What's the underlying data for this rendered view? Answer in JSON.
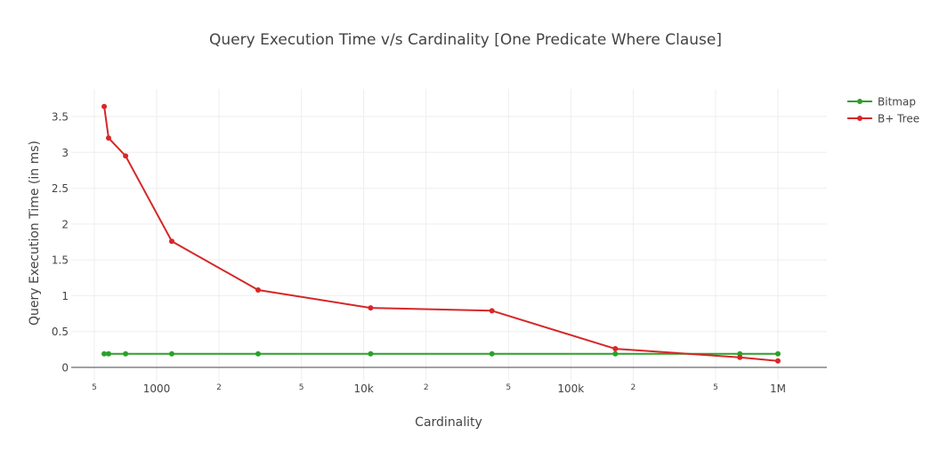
{
  "chart_data": {
    "type": "line",
    "title": "Query Execution Time v/s Cardinality [One Predicate Where Clause]",
    "xlabel": "Cardinality",
    "ylabel": "Query Execution Time (in ms)",
    "x_scale": "log",
    "xlim": [
      400,
      1800000
    ],
    "ylim": [
      -0.18,
      3.85
    ],
    "grid": true,
    "legend_position": "top-right",
    "x_ticks": [
      {
        "value": 500,
        "label": "5",
        "minor": true
      },
      {
        "value": 1000,
        "label": "1000",
        "minor": false
      },
      {
        "value": 2000,
        "label": "2",
        "minor": true
      },
      {
        "value": 5000,
        "label": "5",
        "minor": true
      },
      {
        "value": 10000,
        "label": "10k",
        "minor": false
      },
      {
        "value": 20000,
        "label": "2",
        "minor": true
      },
      {
        "value": 50000,
        "label": "5",
        "minor": true
      },
      {
        "value": 100000,
        "label": "100k",
        "minor": false
      },
      {
        "value": 200000,
        "label": "2",
        "minor": true
      },
      {
        "value": 500000,
        "label": "5",
        "minor": true
      },
      {
        "value": 1000000,
        "label": "1M",
        "minor": false
      }
    ],
    "y_ticks": [
      {
        "value": 0,
        "label": "0"
      },
      {
        "value": 0.5,
        "label": "0.5"
      },
      {
        "value": 1,
        "label": "1"
      },
      {
        "value": 1.5,
        "label": "1.5"
      },
      {
        "value": 2,
        "label": "2"
      },
      {
        "value": 2.5,
        "label": "2.5"
      },
      {
        "value": 3,
        "label": "3"
      },
      {
        "value": 3.5,
        "label": "3.5"
      }
    ],
    "x": [
      558,
      586,
      708,
      1183,
      3090,
      10800,
      41600,
      164000,
      655000,
      1000000
    ],
    "series": [
      {
        "name": "Bitmap",
        "color": "#2ca02c",
        "values": [
          0.19,
          0.19,
          0.19,
          0.19,
          0.19,
          0.19,
          0.19,
          0.19,
          0.19,
          0.19
        ]
      },
      {
        "name": "B+ Tree",
        "color": "#d62728",
        "values": [
          3.64,
          3.2,
          2.95,
          1.76,
          1.08,
          0.83,
          0.79,
          0.26,
          0.14,
          0.09
        ]
      }
    ]
  }
}
